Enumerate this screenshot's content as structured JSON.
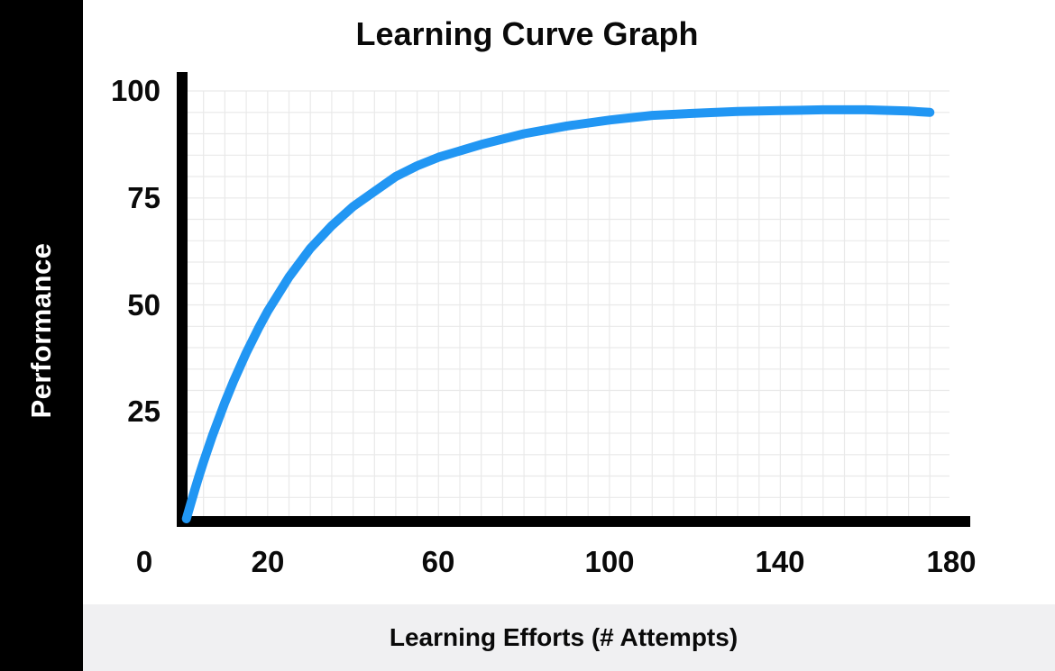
{
  "chart": {
    "title": "Learning Curve Graph",
    "ylabel": "Performance",
    "xlabel": "Learning Efforts (# Attempts)"
  },
  "chart_data": {
    "type": "line",
    "title": "Learning Curve Graph",
    "xlabel": "Learning Efforts (# Attempts)",
    "ylabel": "Performance",
    "xlim": [
      0,
      180
    ],
    "ylim": [
      0,
      100
    ],
    "x_ticks": [
      0,
      20,
      60,
      100,
      140,
      180
    ],
    "y_ticks": [
      100,
      75,
      50,
      25
    ],
    "grid": true,
    "grid_step": 5,
    "legend_position": "none",
    "series": [
      {
        "name": "performance-curve",
        "color": "#2196f3",
        "x": [
          1,
          2,
          3,
          4,
          5,
          7,
          10,
          12,
          15,
          18,
          20,
          25,
          30,
          35,
          40,
          45,
          50,
          55,
          60,
          70,
          80,
          90,
          100,
          110,
          120,
          130,
          140,
          150,
          160,
          170,
          175
        ],
        "y": [
          0,
          3.5,
          6.9,
          10.2,
          13.3,
          19.2,
          27.2,
          32.1,
          38.8,
          44.8,
          48.5,
          56.5,
          63.2,
          68.5,
          73,
          76.5,
          80,
          82.5,
          84.5,
          87.5,
          90,
          91.8,
          93.2,
          94.3,
          94.8,
          95.2,
          95.4,
          95.6,
          95.6,
          95.3,
          95.0
        ]
      }
    ]
  },
  "colors": {
    "curve": "#2196f3",
    "grid": "#e9e9e9",
    "axis": "#000000",
    "sidebar_bg": "#000000",
    "footer_bg": "#f0f0f2",
    "text": "#0a0a0a",
    "ylabel_text": "#ffffff"
  }
}
